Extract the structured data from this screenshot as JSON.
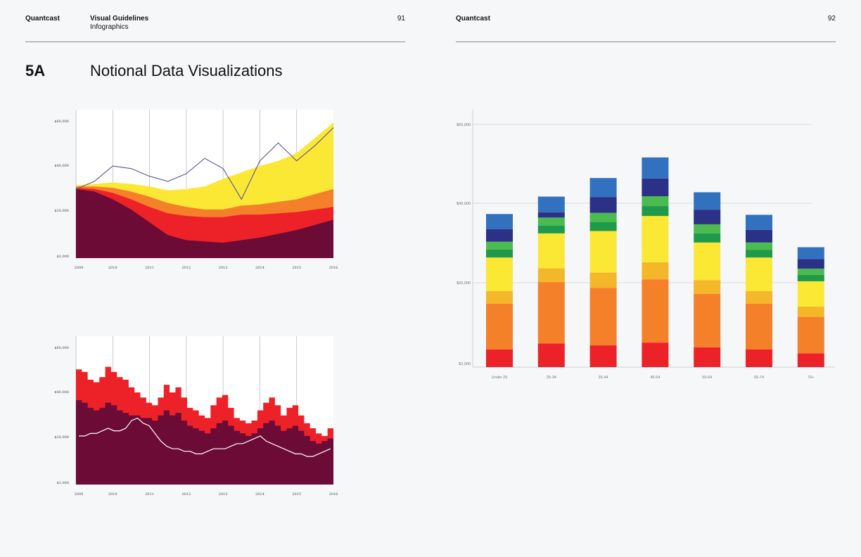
{
  "left_page": {
    "brand": "Quantcast",
    "guide_title": "Visual Guidelines",
    "guide_subtitle": "Infographics",
    "page_number": "91",
    "section_number": "5A",
    "section_title": "Notional Data Visualizations"
  },
  "right_page": {
    "brand": "Quantcast",
    "page_number": "92"
  },
  "colors": {
    "maroon": "#6b0b36",
    "red": "#ed2229",
    "orange": "#f5802a",
    "yellow": "#fbe834",
    "gold": "#f5b72a",
    "dark_green": "#1f9a4b",
    "green": "#4bbb4f",
    "navy": "#2a3187",
    "blue": "#3271be",
    "purple_line": "#5b4f9e"
  },
  "chart_data": [
    {
      "type": "area",
      "id": "stacked-area-chart",
      "x_ticks": [
        "2009",
        "2010",
        "2011",
        "2012",
        "2013",
        "2014",
        "2015",
        "2016"
      ],
      "y_ticks": [
        "$60,000",
        "$40,000",
        "$20,000",
        "$2,000"
      ],
      "x_range": [
        2009,
        2016
      ],
      "ylim": [
        2000,
        60000
      ],
      "stacked": true,
      "x": [
        2009,
        2009.5,
        2010,
        2010.5,
        2011,
        2011.5,
        2012,
        2012.5,
        2013,
        2013.5,
        2014,
        2014.5,
        2015,
        2015.5,
        2016
      ],
      "series": [
        {
          "color": "maroon",
          "values": [
            27000,
            26000,
            23000,
            19000,
            14000,
            9000,
            7000,
            6500,
            6000,
            7000,
            8000,
            9500,
            11000,
            13000,
            15000
          ]
        },
        {
          "color": "red",
          "values": [
            500,
            1000,
            2500,
            4000,
            6000,
            8500,
            9500,
            9500,
            10000,
            10000,
            9000,
            8000,
            7000,
            6000,
            5000
          ]
        },
        {
          "color": "orange",
          "values": [
            500,
            1000,
            2000,
            3000,
            4000,
            4000,
            3500,
            3000,
            3000,
            3500,
            4000,
            4500,
            5000,
            6000,
            7000
          ]
        },
        {
          "color": "yellow",
          "values": [
            500,
            1000,
            2000,
            3000,
            4000,
            5000,
            7000,
            9000,
            12000,
            13000,
            15000,
            16000,
            18000,
            22000,
            26000
          ]
        }
      ],
      "line": {
        "color": "purple_line",
        "values": [
          29000,
          32000,
          38000,
          37000,
          34000,
          32000,
          35000,
          41000,
          37000,
          25000,
          40000,
          47000,
          40000,
          46000,
          53000
        ]
      }
    },
    {
      "type": "area",
      "id": "stepped-area-chart",
      "x_ticks": [
        "2009",
        "2010",
        "2011",
        "2012",
        "2013",
        "2014",
        "2015",
        "2016"
      ],
      "y_ticks": [
        "$60,000",
        "$40,000",
        "$20,000",
        "$2,000"
      ],
      "x_range": [
        2009,
        2016
      ],
      "ylim": [
        2000,
        60000
      ],
      "series": [
        {
          "color": "red",
          "values": [
            47000,
            46000,
            43000,
            42000,
            44000,
            48000,
            46000,
            44000,
            43000,
            40000,
            38000,
            36000,
            34000,
            33000,
            36000,
            41000,
            38000,
            40000,
            36000,
            32000,
            31000,
            29000,
            28000,
            33000,
            36000,
            37000,
            32000,
            28000,
            27000,
            26000,
            27000,
            31000,
            34000,
            36000,
            33000,
            29000,
            32000,
            33000,
            29000,
            26000,
            24000,
            22000,
            21000,
            24000
          ]
        },
        {
          "color": "maroon",
          "values": [
            35000,
            34000,
            32000,
            31000,
            32000,
            34000,
            33000,
            31000,
            30000,
            29000,
            29000,
            28000,
            28000,
            27000,
            29000,
            31000,
            29000,
            30000,
            27000,
            25000,
            24000,
            23000,
            22000,
            24000,
            26000,
            27000,
            25000,
            23000,
            22000,
            21000,
            22000,
            24000,
            26000,
            27000,
            25000,
            23000,
            24000,
            25000,
            23000,
            21000,
            19000,
            18000,
            19000,
            20000
          ]
        }
      ],
      "line": {
        "color": "white",
        "values": [
          21000,
          21000,
          22000,
          22000,
          23000,
          24000,
          23000,
          23000,
          24000,
          27000,
          28000,
          26000,
          25000,
          22000,
          19000,
          17000,
          16000,
          16000,
          15000,
          15000,
          14000,
          14000,
          15000,
          16000,
          16000,
          16000,
          17000,
          18000,
          18000,
          19000,
          20000,
          21000,
          19000,
          18000,
          17000,
          16000,
          15000,
          14000,
          14000,
          13000,
          13000,
          14000,
          15000,
          16000
        ]
      }
    },
    {
      "type": "bar",
      "id": "stacked-bar-chart",
      "categories": [
        "Under 25",
        "25-34",
        "35-44",
        "45-54",
        "55-64",
        "65-74",
        "75+"
      ],
      "y_ticks": [
        "$60,000",
        "$40,000",
        "$20,000",
        "$2,000"
      ],
      "ylim": [
        2000,
        60000
      ],
      "stacked": true,
      "series": [
        {
          "color": "red",
          "values": [
            4500,
            6000,
            5500,
            6200,
            5000,
            4500,
            3500
          ]
        },
        {
          "color": "orange",
          "values": [
            11500,
            15500,
            14500,
            16000,
            13500,
            11500,
            9200
          ]
        },
        {
          "color": "gold",
          "values": [
            3200,
            3500,
            3900,
            4300,
            3500,
            3200,
            2600
          ]
        },
        {
          "color": "yellow",
          "values": [
            8500,
            8800,
            10500,
            11700,
            9500,
            8500,
            6400
          ]
        },
        {
          "color": "dark_green",
          "values": [
            2000,
            2000,
            2300,
            2500,
            2300,
            1900,
            1600
          ]
        },
        {
          "color": "green",
          "values": [
            2000,
            2000,
            2300,
            2500,
            2300,
            1900,
            1600
          ]
        },
        {
          "color": "navy",
          "values": [
            3200,
            1300,
            4000,
            4500,
            3700,
            3200,
            2400
          ]
        },
        {
          "color": "blue",
          "values": [
            3800,
            4000,
            4800,
            5300,
            4400,
            3800,
            3000
          ]
        }
      ]
    }
  ]
}
